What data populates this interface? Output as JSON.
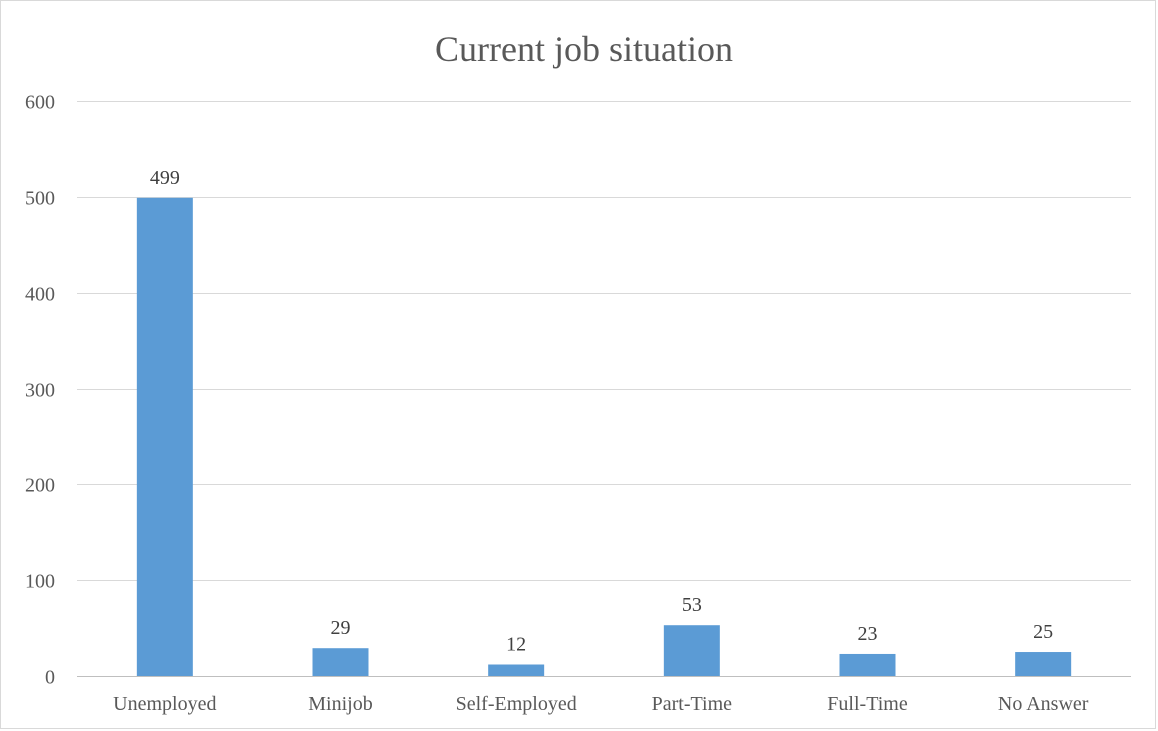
{
  "chart_data": {
    "type": "bar",
    "title": "Current job situation",
    "xlabel": "",
    "ylabel": "",
    "categories": [
      "Unemployed",
      "Minijob",
      "Self-Employed",
      "Part-Time",
      "Full-Time",
      "No Answer"
    ],
    "values": [
      499,
      29,
      12,
      53,
      23,
      25
    ],
    "data_labels": [
      "499",
      "29",
      "12",
      "53",
      "23",
      "25"
    ],
    "ylim": [
      0,
      600
    ],
    "yticks": [
      0,
      100,
      200,
      300,
      400,
      500,
      600
    ],
    "grid": true,
    "legend": "none",
    "bar_color": "#5b9bd5"
  }
}
